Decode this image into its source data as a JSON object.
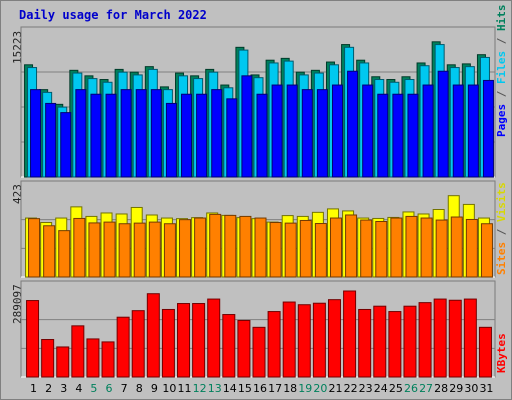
{
  "chart_data": {
    "type": "bar",
    "title": "Daily usage for March 2022",
    "categories": [
      "1",
      "2",
      "3",
      "4",
      "5",
      "6",
      "7",
      "8",
      "9",
      "10",
      "11",
      "12",
      "13",
      "14",
      "15",
      "16",
      "17",
      "18",
      "19",
      "20",
      "21",
      "22",
      "23",
      "24",
      "25",
      "26",
      "27",
      "28",
      "29",
      "30",
      "31"
    ],
    "weekend_days": [
      "5",
      "6",
      "12",
      "13",
      "19",
      "20",
      "26",
      "27"
    ],
    "panels": [
      {
        "name": "pages-files-hits",
        "ylabel": "15223",
        "ylim": [
          0,
          15223
        ],
        "right_labels": [
          "Pages",
          "Files",
          "Hits"
        ],
        "series": [
          {
            "name": "Hits",
            "color": "#00805c",
            "values": [
              12200,
              9500,
              7900,
              11600,
              11000,
              10600,
              11700,
              11400,
              12000,
              9800,
              11300,
              11000,
              11700,
              10000,
              14100,
              11100,
              12700,
              12900,
              11400,
              11600,
              12500,
              14400,
              12700,
              10900,
              10600,
              10900,
              12400,
              14700,
              12200,
              12300,
              13300
            ]
          },
          {
            "name": "Files",
            "color": "#00c8f0",
            "values": [
              11900,
              9200,
              7600,
              11300,
              10700,
              10300,
              11400,
              11100,
              11700,
              9500,
              11000,
              10700,
              11400,
              9700,
              13800,
              10800,
              12400,
              12600,
              11100,
              11300,
              12200,
              14100,
              12400,
              10600,
              10300,
              10600,
              12100,
              14400,
              11900,
              12000,
              13000
            ]
          },
          {
            "name": "Pages",
            "color": "#0000ff",
            "values": [
              9500,
              8000,
              7000,
              9500,
              9000,
              9000,
              9500,
              9500,
              9500,
              8000,
              9000,
              9000,
              9500,
              8500,
              11000,
              9000,
              10000,
              10000,
              9500,
              9500,
              10000,
              11500,
              10000,
              9000,
              9000,
              9000,
              10000,
              11500,
              10000,
              10000,
              10500
            ]
          }
        ]
      },
      {
        "name": "visits-sites",
        "ylabel": "423",
        "ylim": [
          0,
          423
        ],
        "right_labels": [
          "Sites",
          "Visits"
        ],
        "series": [
          {
            "name": "Visits",
            "color": "#ffff00",
            "values": [
              290,
              268,
              290,
              345,
              298,
              315,
              310,
              342,
              305,
              290,
              287,
              292,
              315,
              303,
              292,
              287,
              270,
              302,
              298,
              318,
              335,
              325,
              290,
              288,
              293,
              320,
              310,
              332,
              400,
              357,
              290
            ]
          },
          {
            "name": "Sites",
            "color": "#ff8000",
            "values": [
              287,
              252,
              228,
              288,
              266,
              270,
              262,
              265,
              270,
              262,
              282,
              290,
              308,
              303,
              298,
              290,
              268,
              265,
              278,
              263,
              290,
              305,
              280,
              273,
              290,
              298,
              290,
              280,
              295,
              283,
              262
            ]
          }
        ]
      },
      {
        "name": "kbytes",
        "ylabel": "289097",
        "ylim": [
          0,
          289097
        ],
        "right_labels": [
          "KBytes"
        ],
        "series": [
          {
            "name": "KBytes",
            "color": "#ff0000",
            "values": [
              257000,
              126000,
              101000,
              172000,
              128000,
              118000,
              201000,
              223000,
              280000,
              227000,
              247000,
              247000,
              262000,
              210000,
              190000,
              167000,
              220000,
              252000,
              243000,
              248000,
              260000,
              289097,
              227000,
              238000,
              220000,
              238000,
              250000,
              262000,
              258000,
              262000,
              167000
            ]
          }
        ]
      }
    ]
  }
}
